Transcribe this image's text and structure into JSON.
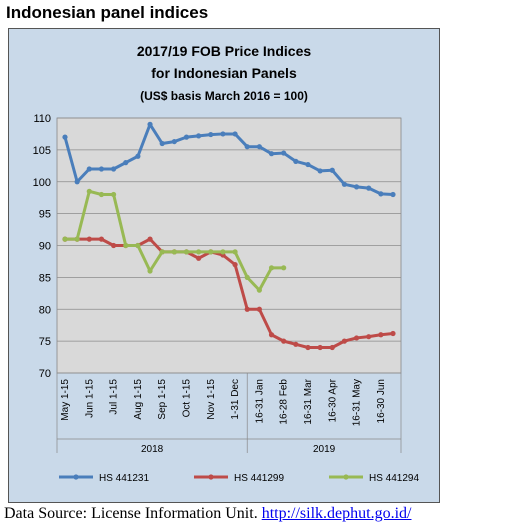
{
  "page": {
    "heading": "Indonesian panel indices",
    "source_prefix": "Data Source: License Information Unit. ",
    "source_link": "http://silk.dephut.go.id/"
  },
  "colors": {
    "HS 441231": "#4a7ebb",
    "HS 441299": "#be4b48",
    "HS 441294": "#98b954",
    "plot_bg": "#d9d9d9",
    "chart_bg": "#c9d9e9"
  },
  "chart_data": {
    "type": "line",
    "title": [
      "2017/19 FOB Price Indices",
      "for Indonesian Panels",
      "(US$ basis March 2016 = 100)"
    ],
    "xlabel": "",
    "ylabel": "",
    "ylim": [
      70,
      110
    ],
    "yticks": [
      70,
      75,
      80,
      85,
      90,
      95,
      100,
      105,
      110
    ],
    "grid": true,
    "legend_position": "bottom",
    "categories": [
      "May 1-15",
      "Jun 1-15",
      "Jul 1-15",
      "Aug 1-15",
      "Sep 1-15",
      "Oct 1-15",
      "Nov 1-15",
      "1-31 Dec",
      "16-31 Jan",
      "16-28 Feb",
      "16-31 Mar",
      "16-30 Apr",
      "16-31 May",
      "16-30 Jun"
    ],
    "year_labels": [
      {
        "label": "2018",
        "from": 0,
        "to": 7
      },
      {
        "label": "2019",
        "from": 8,
        "to": 13
      }
    ],
    "x": [
      0,
      0.5,
      1,
      1.5,
      2,
      2.5,
      3,
      3.5,
      4,
      4.5,
      5,
      5.5,
      6,
      6.5,
      7,
      7.5,
      8,
      8.5,
      9,
      9.5,
      10,
      10.5,
      11,
      11.5,
      12,
      12.5,
      13,
      13.5
    ],
    "series": [
      {
        "name": "HS 441231",
        "values": [
          107,
          100,
          102,
          102,
          102,
          103,
          104,
          109,
          106,
          106.3,
          107,
          107.2,
          107.4,
          107.5,
          107.5,
          105.5,
          105.5,
          104.4,
          104.5,
          103.2,
          102.7,
          101.7,
          101.8,
          99.6,
          99.2,
          99,
          98.1,
          98
        ]
      },
      {
        "name": "HS 441299",
        "values": [
          91,
          91,
          91,
          91,
          90,
          90,
          90,
          91,
          89,
          89,
          89,
          88,
          89,
          88.5,
          87,
          80,
          80,
          76,
          75,
          74.5,
          74,
          74,
          74,
          75,
          75.5,
          75.7,
          76,
          76.2
        ]
      },
      {
        "name": "HS 441294",
        "values": [
          91,
          91,
          98.5,
          98,
          98,
          90,
          90,
          86,
          89,
          89,
          89,
          89,
          89,
          89,
          89,
          85,
          83,
          86.5,
          86.5,
          null,
          null,
          null,
          null,
          null,
          null,
          null,
          null,
          null
        ]
      }
    ]
  }
}
